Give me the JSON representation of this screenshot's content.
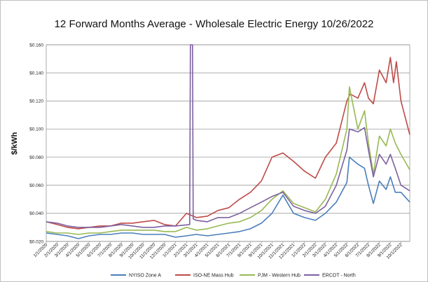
{
  "chart_data": {
    "type": "line",
    "title": "12 Forward Months Average - Wholesale Electric Energy 10/26/2022",
    "ylabel": "$/kWh",
    "xlabel": "",
    "ylim": [
      0.02,
      0.16
    ],
    "yticks": [
      "$0.020",
      "$0.040",
      "$0.060",
      "$0.080",
      "$0.100",
      "$0.120",
      "$0.140",
      "$0.160"
    ],
    "ytick_values": [
      0.02,
      0.04,
      0.06,
      0.08,
      0.1,
      0.12,
      0.14,
      0.16
    ],
    "xlim": [
      "2020-01-01",
      "2022-10-26"
    ],
    "xticks": [
      "1/1/2020",
      "2/1/2020",
      "3/1/2020",
      "4/1/2020",
      "5/1/2020",
      "6/1/2020",
      "7/1/2020",
      "8/1/2020",
      "9/1/2020",
      "10/1/2020",
      "11/1/2020",
      "12/1/2020",
      "1/1/2021",
      "2/1/2021",
      "3/1/2021",
      "4/1/2021",
      "5/1/2021",
      "6/1/2021",
      "7/1/2021",
      "8/1/2021",
      "9/1/2021",
      "10/1/2021",
      "11/1/2021",
      "12/1/2021",
      "1/1/2022",
      "2/1/2022",
      "3/1/2022",
      "4/1/2022",
      "5/1/2022",
      "6/1/2022",
      "7/1/2022",
      "8/1/2022",
      "9/1/2022",
      "10/1/2022"
    ],
    "grid": true,
    "legend_position": "bottom",
    "series": [
      {
        "name": "NYISO Zone A",
        "color": "#4a7ebb",
        "points": [
          [
            "2020-01-01",
            0.026
          ],
          [
            "2020-02-01",
            0.025
          ],
          [
            "2020-03-01",
            0.024
          ],
          [
            "2020-04-01",
            0.022
          ],
          [
            "2020-05-01",
            0.024
          ],
          [
            "2020-06-01",
            0.025
          ],
          [
            "2020-07-01",
            0.025
          ],
          [
            "2020-08-01",
            0.026
          ],
          [
            "2020-09-01",
            0.026
          ],
          [
            "2020-10-01",
            0.025
          ],
          [
            "2020-11-01",
            0.025
          ],
          [
            "2020-12-01",
            0.025
          ],
          [
            "2021-01-01",
            0.023
          ],
          [
            "2021-02-01",
            0.024
          ],
          [
            "2021-03-01",
            0.025
          ],
          [
            "2021-04-01",
            0.024
          ],
          [
            "2021-05-01",
            0.025
          ],
          [
            "2021-06-01",
            0.026
          ],
          [
            "2021-07-01",
            0.027
          ],
          [
            "2021-08-01",
            0.029
          ],
          [
            "2021-09-01",
            0.033
          ],
          [
            "2021-10-01",
            0.04
          ],
          [
            "2021-11-01",
            0.053
          ],
          [
            "2021-12-01",
            0.04
          ],
          [
            "2022-01-01",
            0.037
          ],
          [
            "2022-02-01",
            0.035
          ],
          [
            "2022-03-01",
            0.04
          ],
          [
            "2022-04-01",
            0.048
          ],
          [
            "2022-05-01",
            0.062
          ],
          [
            "2022-05-08",
            0.08
          ],
          [
            "2022-06-01",
            0.075
          ],
          [
            "2022-06-20",
            0.072
          ],
          [
            "2022-07-01",
            0.06
          ],
          [
            "2022-07-15",
            0.047
          ],
          [
            "2022-08-01",
            0.063
          ],
          [
            "2022-08-20",
            0.057
          ],
          [
            "2022-09-01",
            0.066
          ],
          [
            "2022-09-15",
            0.055
          ],
          [
            "2022-10-01",
            0.055
          ],
          [
            "2022-10-26",
            0.048
          ]
        ]
      },
      {
        "name": "ISO-NE Mass Hub",
        "color": "#be4b48",
        "points": [
          [
            "2020-01-01",
            0.034
          ],
          [
            "2020-02-01",
            0.032
          ],
          [
            "2020-03-01",
            0.03
          ],
          [
            "2020-04-01",
            0.029
          ],
          [
            "2020-05-01",
            0.03
          ],
          [
            "2020-06-01",
            0.031
          ],
          [
            "2020-07-01",
            0.031
          ],
          [
            "2020-08-01",
            0.033
          ],
          [
            "2020-09-01",
            0.033
          ],
          [
            "2020-10-01",
            0.034
          ],
          [
            "2020-11-01",
            0.035
          ],
          [
            "2020-12-01",
            0.032
          ],
          [
            "2021-01-01",
            0.031
          ],
          [
            "2021-02-01",
            0.04
          ],
          [
            "2021-03-01",
            0.037
          ],
          [
            "2021-04-01",
            0.038
          ],
          [
            "2021-05-01",
            0.042
          ],
          [
            "2021-06-01",
            0.044
          ],
          [
            "2021-07-01",
            0.05
          ],
          [
            "2021-08-01",
            0.055
          ],
          [
            "2021-09-01",
            0.063
          ],
          [
            "2021-10-01",
            0.08
          ],
          [
            "2021-11-01",
            0.083
          ],
          [
            "2021-12-01",
            0.077
          ],
          [
            "2022-01-01",
            0.07
          ],
          [
            "2022-02-01",
            0.065
          ],
          [
            "2022-03-01",
            0.08
          ],
          [
            "2022-04-01",
            0.09
          ],
          [
            "2022-05-01",
            0.12
          ],
          [
            "2022-05-10",
            0.125
          ],
          [
            "2022-06-01",
            0.122
          ],
          [
            "2022-06-20",
            0.133
          ],
          [
            "2022-07-01",
            0.122
          ],
          [
            "2022-07-15",
            0.118
          ],
          [
            "2022-08-01",
            0.142
          ],
          [
            "2022-08-20",
            0.133
          ],
          [
            "2022-09-01",
            0.151
          ],
          [
            "2022-09-10",
            0.133
          ],
          [
            "2022-09-18",
            0.148
          ],
          [
            "2022-10-01",
            0.12
          ],
          [
            "2022-10-26",
            0.096
          ]
        ]
      },
      {
        "name": "PJM - Western Hub",
        "color": "#98b954",
        "points": [
          [
            "2020-01-01",
            0.027
          ],
          [
            "2020-02-01",
            0.026
          ],
          [
            "2020-03-01",
            0.026
          ],
          [
            "2020-04-01",
            0.025
          ],
          [
            "2020-05-01",
            0.026
          ],
          [
            "2020-06-01",
            0.026
          ],
          [
            "2020-07-01",
            0.027
          ],
          [
            "2020-08-01",
            0.028
          ],
          [
            "2020-09-01",
            0.028
          ],
          [
            "2020-10-01",
            0.028
          ],
          [
            "2020-11-01",
            0.028
          ],
          [
            "2020-12-01",
            0.027
          ],
          [
            "2021-01-01",
            0.027
          ],
          [
            "2021-02-01",
            0.03
          ],
          [
            "2021-03-01",
            0.028
          ],
          [
            "2021-04-01",
            0.029
          ],
          [
            "2021-05-01",
            0.031
          ],
          [
            "2021-06-01",
            0.033
          ],
          [
            "2021-07-01",
            0.034
          ],
          [
            "2021-08-01",
            0.037
          ],
          [
            "2021-09-01",
            0.042
          ],
          [
            "2021-10-01",
            0.05
          ],
          [
            "2021-11-01",
            0.056
          ],
          [
            "2021-12-01",
            0.047
          ],
          [
            "2022-01-01",
            0.044
          ],
          [
            "2022-02-01",
            0.041
          ],
          [
            "2022-03-01",
            0.05
          ],
          [
            "2022-04-01",
            0.068
          ],
          [
            "2022-05-01",
            0.1
          ],
          [
            "2022-05-08",
            0.13
          ],
          [
            "2022-06-01",
            0.1
          ],
          [
            "2022-06-20",
            0.113
          ],
          [
            "2022-07-01",
            0.09
          ],
          [
            "2022-07-15",
            0.068
          ],
          [
            "2022-08-01",
            0.095
          ],
          [
            "2022-08-20",
            0.088
          ],
          [
            "2022-09-01",
            0.1
          ],
          [
            "2022-09-15",
            0.09
          ],
          [
            "2022-10-01",
            0.082
          ],
          [
            "2022-10-26",
            0.071
          ]
        ]
      },
      {
        "name": "ERCOT - North",
        "color": "#7d60a0",
        "points": [
          [
            "2020-01-01",
            0.034
          ],
          [
            "2020-02-01",
            0.033
          ],
          [
            "2020-03-01",
            0.031
          ],
          [
            "2020-04-01",
            0.03
          ],
          [
            "2020-05-01",
            0.03
          ],
          [
            "2020-06-01",
            0.03
          ],
          [
            "2020-07-01",
            0.031
          ],
          [
            "2020-08-01",
            0.032
          ],
          [
            "2020-09-01",
            0.031
          ],
          [
            "2020-10-01",
            0.03
          ],
          [
            "2020-11-01",
            0.03
          ],
          [
            "2020-12-01",
            0.031
          ],
          [
            "2021-01-01",
            0.031
          ],
          [
            "2021-02-10",
            0.032
          ],
          [
            "2021-02-12",
            0.16
          ],
          [
            "2021-02-18",
            0.16
          ],
          [
            "2021-02-20",
            0.036
          ],
          [
            "2021-03-01",
            0.035
          ],
          [
            "2021-04-01",
            0.034
          ],
          [
            "2021-05-01",
            0.037
          ],
          [
            "2021-06-01",
            0.037
          ],
          [
            "2021-07-01",
            0.04
          ],
          [
            "2021-08-01",
            0.044
          ],
          [
            "2021-09-01",
            0.048
          ],
          [
            "2021-10-01",
            0.052
          ],
          [
            "2021-11-01",
            0.055
          ],
          [
            "2021-12-01",
            0.045
          ],
          [
            "2022-01-01",
            0.042
          ],
          [
            "2022-02-01",
            0.04
          ],
          [
            "2022-03-01",
            0.045
          ],
          [
            "2022-04-01",
            0.06
          ],
          [
            "2022-05-01",
            0.085
          ],
          [
            "2022-05-08",
            0.1
          ],
          [
            "2022-06-01",
            0.098
          ],
          [
            "2022-06-20",
            0.101
          ],
          [
            "2022-07-01",
            0.085
          ],
          [
            "2022-07-15",
            0.066
          ],
          [
            "2022-08-01",
            0.082
          ],
          [
            "2022-08-20",
            0.075
          ],
          [
            "2022-09-01",
            0.082
          ],
          [
            "2022-09-15",
            0.072
          ],
          [
            "2022-10-01",
            0.06
          ],
          [
            "2022-10-26",
            0.056
          ]
        ]
      }
    ]
  }
}
